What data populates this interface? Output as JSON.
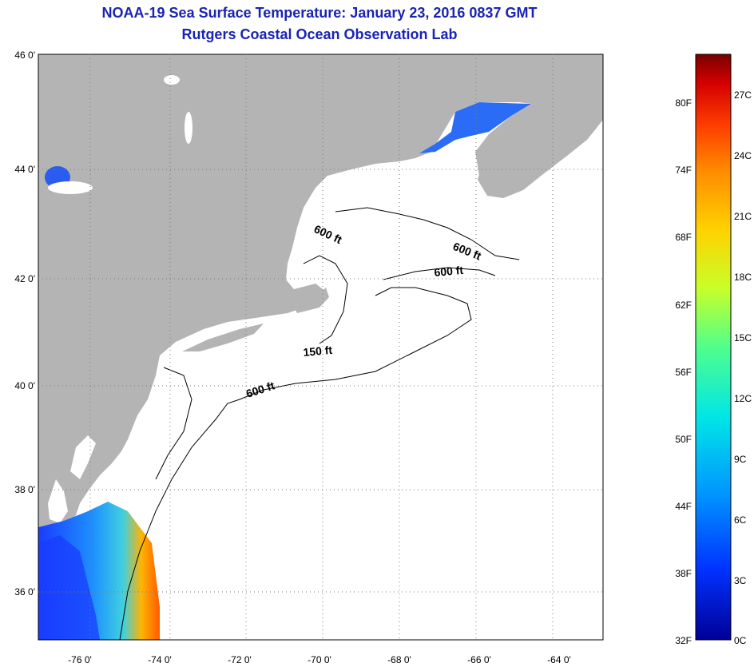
{
  "header": {
    "title_line1": "NOAA-19 Sea Surface Temperature:  January 23, 2016 0837 GMT",
    "title_line2": "Rutgers Coastal Ocean Observation Lab"
  },
  "map": {
    "lat_labels": [
      "46 0'",
      "44 0'",
      "42 0'",
      "40 0'",
      "38 0'",
      "36 0'"
    ],
    "lon_labels": [
      "-76 0'",
      "-74 0'",
      "-72 0'",
      "-70 0'",
      "-68 0'",
      "-66 0'",
      "-64 0'"
    ],
    "contour_labels": [
      "600 ft",
      "600 ft",
      "600 ft",
      "150 ft",
      "600 ft"
    ],
    "land_color": "#b4b4b4",
    "ocean_color": "#ffffff"
  },
  "colorbar": {
    "fahrenheit_labels": [
      "80F",
      "74F",
      "68F",
      "62F",
      "56F",
      "50F",
      "44F",
      "38F",
      "32F"
    ],
    "celsius_labels": [
      "27C",
      "24C",
      "21C",
      "18C",
      "15C",
      "12C",
      "9C",
      "6C",
      "3C",
      "0C"
    ],
    "colors": [
      "#7a0000",
      "#d40000",
      "#ff3c00",
      "#ff8c00",
      "#ffd200",
      "#c8ff28",
      "#50ff8c",
      "#00e6e6",
      "#0096ff",
      "#0032ff",
      "#000096"
    ]
  }
}
